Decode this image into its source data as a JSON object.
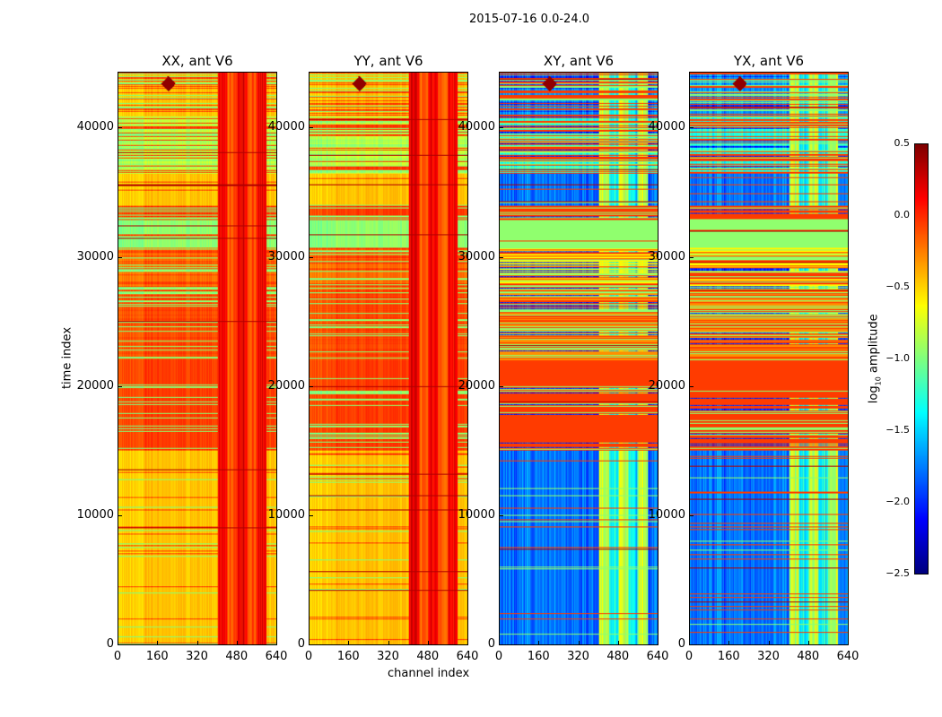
{
  "chart_data": {
    "type": "heatmap",
    "title": "2015-07-16 0.0-24.0",
    "xlabel": "channel index",
    "ylabel": "time index",
    "xlim": [
      0,
      640
    ],
    "ylim": [
      0,
      44400
    ],
    "xticks": [
      "0",
      "160",
      "320",
      "480",
      "640"
    ],
    "yticks": [
      "0",
      "10000",
      "20000",
      "30000",
      "40000"
    ],
    "panels": [
      {
        "title": "XX, ant V6",
        "kind": "parallel"
      },
      {
        "title": "YY, ant V6",
        "kind": "parallel"
      },
      {
        "title": "XY, ant V6",
        "kind": "cross"
      },
      {
        "title": "YX, ant V6",
        "kind": "cross"
      }
    ],
    "colorbar": {
      "label_prefix": "log",
      "label_sub": "10",
      "label_suffix": " amplitude",
      "range": [
        -2.5,
        0.5
      ],
      "ticks": [
        "0.5",
        "0.0",
        "−0.5",
        "−1.0",
        "−1.5",
        "−2.0",
        "−2.5"
      ],
      "colormap": "jet"
    },
    "time_bands": [
      {
        "t0": 0,
        "t1": 15000,
        "parallel": -0.45,
        "cross": -1.8,
        "mixed": false
      },
      {
        "t0": 15000,
        "t1": 20000,
        "parallel": -0.05,
        "cross": -0.05,
        "mixed": true
      },
      {
        "t0": 20000,
        "t1": 22000,
        "parallel": -0.05,
        "cross": -0.05,
        "mixed": false
      },
      {
        "t0": 22000,
        "t1": 27500,
        "parallel": -0.1,
        "cross": -0.3,
        "mixed": true
      },
      {
        "t0": 27500,
        "t1": 30800,
        "parallel": -0.2,
        "cross": -0.6,
        "mixed": true
      },
      {
        "t0": 30800,
        "t1": 32900,
        "parallel": -0.95,
        "cross": -0.95,
        "mixed": false
      },
      {
        "t0": 32900,
        "t1": 34000,
        "parallel": -0.05,
        "cross": -0.05,
        "mixed": true
      },
      {
        "t0": 34000,
        "t1": 36500,
        "parallel": -0.45,
        "cross": -1.8,
        "mixed": false
      },
      {
        "t0": 36500,
        "t1": 41000,
        "parallel": -0.8,
        "cross": -1.3,
        "mixed": true
      },
      {
        "t0": 41000,
        "t1": 44400,
        "parallel": -0.45,
        "cross": -1.7,
        "mixed": true
      }
    ],
    "rfi_channel_range": [
      400,
      600
    ],
    "rfi_peak_channel": 200,
    "rfi_peak_time": 43500
  }
}
